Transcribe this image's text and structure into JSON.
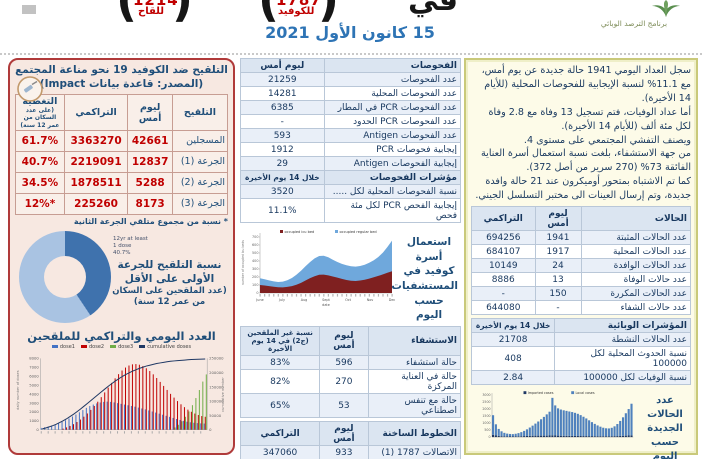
{
  "header": {
    "date": "15 كانون الأول 2021",
    "program": "برنامج الترصد الوبائي",
    "title_fragment": "في",
    "hotlines": [
      {
        "number": "1214",
        "label": "للقاح"
      },
      {
        "number": "1787",
        "label": "للكوفيد"
      }
    ]
  },
  "vaccination": {
    "title": "التلقيح ضد الكوفيد 19  نحو مناعة المجتمع",
    "subtitle": "(المصدر: قاعدة بيانات Impact)",
    "table": {
      "headers": {
        "name": "التلقيح",
        "yesterday": "ليوم أمس",
        "cumulative": "التراكمي",
        "coverage": "التغطية",
        "coverage_note": "(على عدد السكان من عمر 12 سنة)"
      },
      "rows": [
        {
          "label": "المسجلين",
          "yesterday": "42661",
          "cumulative": "3363270",
          "coverage": "61.7%"
        },
        {
          "label": "الجرعة (1)",
          "yesterday": "12837",
          "cumulative": "2219091",
          "coverage": "40.7%"
        },
        {
          "label": "الجرعة (2)",
          "yesterday": "5288",
          "cumulative": "1878511",
          "coverage": "34.5%"
        },
        {
          "label": "الجرعة (3)",
          "yesterday": "8173",
          "cumulative": "225260",
          "coverage": "*12%"
        }
      ]
    },
    "footnote": "* نسبة من مجموع متلقي الجرعة الثانية",
    "donut": {
      "pct": 40.7,
      "color_main": "#3f72ad",
      "color_rest": "#a9c3e2",
      "label_lines": [
        "12yr at least",
        "1 dose",
        "40.7%"
      ],
      "side_text_1": "نسبة التلقيح للجرعة الأولى على الأقل",
      "side_text_2": "(عدد الملقحين على السكان من عمر 12 سنة)"
    },
    "chart_title": "العدد اليومي والتراكمي للملقحين"
  },
  "tests": {
    "headers": {
      "name": "الفحوصات",
      "yesterday": "ليوم أمس"
    },
    "rows": [
      {
        "label": "عدد الفحوصات",
        "value": "21259"
      },
      {
        "label": "عدد الفحوصات المحلية",
        "value": "14281"
      },
      {
        "label": "عدد الفحوصات PCR في المطار",
        "value": "6385"
      },
      {
        "label": "عدد الفحوصات PCR الحدود",
        "value": "-"
      },
      {
        "label": "عدد الفحوصات Antigen",
        "value": "593"
      },
      {
        "label": "إيجابية فحوصات PCR",
        "value": "1912"
      },
      {
        "label": "إيجابية الفحوصات Antigen",
        "value": "29"
      }
    ],
    "indicators_header": {
      "name": "مؤشرات الفحوصات",
      "period": "خلال 14 يوم الأخيرة"
    },
    "indicator_rows": [
      {
        "label": "نسبة الفحوصات المحلية لكل .....",
        "value": "3520"
      },
      {
        "label": "إيجابية الفحص PCR لكل مئة فحص",
        "value": "11.1%"
      }
    ]
  },
  "hospitalization": {
    "headers": {
      "name": "الاستشفاء",
      "yesterday": "ليوم أمس",
      "unvaccinated": "نسبة غير الملقحين (ج2) في 14 يوم الأخيرة"
    },
    "rows": [
      {
        "label": "حالة استشفاء",
        "yesterday": "596",
        "unvaccinated": "83%"
      },
      {
        "label": "حالة في العناية المركزة",
        "yesterday": "270",
        "unvaccinated": "82%"
      },
      {
        "label": "حالة مع تنفس اصطناعي",
        "yesterday": "53",
        "unvaccinated": "65%"
      }
    ]
  },
  "hotline": {
    "headers": {
      "name": "الخطوط الساخنة",
      "yesterday": "ليوم أمس",
      "cumulative": "التراكمي"
    },
    "rows": [
      {
        "label": "الاتصالات 1787 (1)",
        "yesterday": "933",
        "cumulative": "347060"
      }
    ]
  },
  "summary": {
    "lines": [
      "سجل العداد اليومي 1941 حالة جديدة عن يوم أمس، مع 11.1% لنسبة الإيجابية للفحوصات المحلية (للأيام 14 الأخيرة).",
      "أما عداد الوفيات، فتم تسجيل 13 وفاة مع 2.8 وفاة لكل مئة ألف (للأيام 14 الأخيرة).",
      "ويصنف التفشي المجتمعي على مستوى 4.",
      "من جهة الاستشفاء، بلغت نسبة استعمال أسرة العناية الفائقة 73% (270 سرير من أصل 372).",
      "كما تم الاشتباه بمتحور أوميكرون عند 21 حالة وافدة جديدة، وتم إرسال العينات الى مختبر التسلسل الجيني."
    ]
  },
  "cases": {
    "headers": {
      "name": "الحالات",
      "yesterday": "ليوم أمس",
      "cumulative": "التراكمي"
    },
    "rows": [
      {
        "label": "عدد الحالات المثبتة",
        "yesterday": "1941",
        "cumulative": "694256"
      },
      {
        "label": "عدد الحالات المحلية",
        "yesterday": "1917",
        "cumulative": "684107"
      },
      {
        "label": "عدد الحالات الوافدة",
        "yesterday": "24",
        "cumulative": "10149"
      },
      {
        "label": "عدد حالات الوفاة",
        "yesterday": "13",
        "cumulative": "8886"
      },
      {
        "label": "عدد الحالات المكررة",
        "yesterday": "150",
        "cumulative": "-"
      },
      {
        "label": "عدد حالات الشفاء",
        "yesterday": "-",
        "cumulative": "644080"
      }
    ]
  },
  "epi_indicators": {
    "headers": {
      "name": "المؤشرات الوبائية",
      "period": "خلال 14 يوم الأخيرة"
    },
    "rows": [
      {
        "label": "عدد الحالات النشطة",
        "value": "21708"
      },
      {
        "label": "نسبة الحدوث المحلية لكل 100000",
        "value": "408"
      },
      {
        "label": "نسبة الوفيات لكل 100000",
        "value": "2.84"
      }
    ]
  },
  "chart_data": [
    {
      "id": "daily-cumulative-vaccinations",
      "type": "bar+line",
      "title": "العدد اليومي والتراكمي للملقحين",
      "ylabel_left": "daily number of doses",
      "ylabel_right": "cumulative number",
      "ylim_left": [
        0,
        8000
      ],
      "ylim_right": [
        0,
        250000
      ],
      "series": [
        {
          "name": "dose1",
          "color": "#4472c4",
          "values": [
            200,
            280,
            360,
            460,
            580,
            720,
            880,
            1060,
            1260,
            1480,
            1700,
            1950,
            2200,
            2450,
            2650,
            2820,
            2950,
            3050,
            3120,
            3150,
            3120,
            3060,
            2980,
            2900,
            2820,
            2740,
            2660,
            2580,
            2480,
            2380,
            2280,
            2160,
            2040,
            1920,
            1800,
            1680,
            1560,
            1440,
            1320,
            1200,
            1090,
            990,
            900,
            830,
            780,
            740,
            710,
            690
          ]
        },
        {
          "name": "dose2",
          "color": "#c00000",
          "values": [
            0,
            0,
            0,
            0,
            0,
            0,
            120,
            260,
            420,
            620,
            860,
            1140,
            1460,
            1820,
            2220,
            2660,
            3140,
            3650,
            4180,
            4720,
            5250,
            5760,
            6230,
            6640,
            6970,
            7200,
            7330,
            7360,
            7290,
            7130,
            6890,
            6580,
            6210,
            5800,
            5360,
            4910,
            4460,
            4020,
            3600,
            3210,
            2850,
            2530,
            2250,
            2010,
            1810,
            1650,
            1530,
            1450
          ]
        },
        {
          "name": "dose3",
          "color": "#70ad47",
          "values": [
            0,
            0,
            0,
            0,
            0,
            0,
            0,
            0,
            0,
            0,
            0,
            0,
            0,
            0,
            0,
            0,
            0,
            0,
            0,
            0,
            0,
            0,
            0,
            0,
            0,
            0,
            0,
            0,
            0,
            0,
            0,
            0,
            0,
            0,
            0,
            0,
            0,
            0,
            250,
            550,
            950,
            1450,
            2050,
            2750,
            3550,
            4450,
            5400,
            6200
          ]
        },
        {
          "name": "cumulative doses",
          "color": "#1f3864",
          "values": [
            3000,
            6000,
            10000,
            14000,
            19000,
            25000,
            31000,
            38000,
            46000,
            54000,
            63000,
            72000,
            82000,
            92000,
            102000,
            112000,
            122000,
            132000,
            142000,
            152000,
            161000,
            170000,
            178000,
            186000,
            193000,
            199000,
            205000,
            210000,
            215000,
            219000,
            223000,
            226000,
            229000,
            232000,
            234000,
            236000,
            238000,
            240000,
            241000,
            242000,
            243000,
            244000,
            245000,
            246000,
            246500,
            247000,
            247500,
            248000
          ]
        }
      ]
    },
    {
      "id": "covid-beds-by-day",
      "type": "stacked-area",
      "side_title": "استعمال أسرة كوفيد في المستشفيات حسب اليوم",
      "ylabel": "number of occupied icu beds",
      "xlabel": "date",
      "ylim": [
        0,
        700
      ],
      "x_categories": [
        "June",
        "July",
        "Aug",
        "Sept",
        "Oct",
        "Nov",
        "Dec"
      ],
      "series": [
        {
          "name": "occupied icu bed",
          "color": "#7f2020",
          "values": [
            100,
            94,
            86,
            78,
            72,
            70,
            76,
            86,
            102,
            126,
            156,
            186,
            210,
            228,
            230,
            220,
            206,
            192,
            176,
            162,
            152,
            150,
            156,
            166,
            180,
            196,
            214,
            232,
            252,
            272
          ]
        },
        {
          "name": "occupied regular bed",
          "color": "#6fa8dc",
          "values": [
            85,
            78,
            72,
            67,
            66,
            72,
            84,
            102,
            126,
            152,
            178,
            202,
            222,
            234,
            236,
            226,
            210,
            196,
            188,
            184,
            182,
            180,
            182,
            188,
            198,
            214,
            236,
            273,
            323,
            383
          ]
        }
      ]
    },
    {
      "id": "new-cases-by-day",
      "type": "stacked-bar",
      "side_title": "عدد الحالات الجديدة حسب اليوم",
      "ylim": [
        0,
        3000
      ],
      "series": [
        {
          "name": "Imported cases",
          "color": "#1f3864",
          "values": [
            160,
            110,
            80,
            60,
            50,
            45,
            40,
            40,
            45,
            50,
            60,
            70,
            80,
            90,
            95,
            100,
            100,
            100,
            100,
            100,
            110,
            120,
            110,
            100,
            95,
            90,
            90,
            85,
            85,
            80,
            80,
            75,
            70,
            70,
            65,
            65,
            60,
            60,
            60,
            55,
            55,
            55,
            60,
            65,
            70,
            80,
            90,
            100,
            110,
            120
          ]
        },
        {
          "name": "Local cases",
          "color": "#4f81bd",
          "values": [
            1400,
            800,
            500,
            350,
            250,
            200,
            180,
            170,
            190,
            230,
            290,
            370,
            470,
            590,
            720,
            860,
            1010,
            1170,
            1340,
            1520,
            1700,
            2680,
            2150,
            1950,
            1870,
            1820,
            1780,
            1740,
            1700,
            1650,
            1580,
            1490,
            1380,
            1260,
            1130,
            1000,
            880,
            770,
            680,
            610,
            570,
            560,
            600,
            700,
            860,
            1070,
            1320,
            1600,
            1890,
            2260
          ]
        }
      ]
    }
  ]
}
